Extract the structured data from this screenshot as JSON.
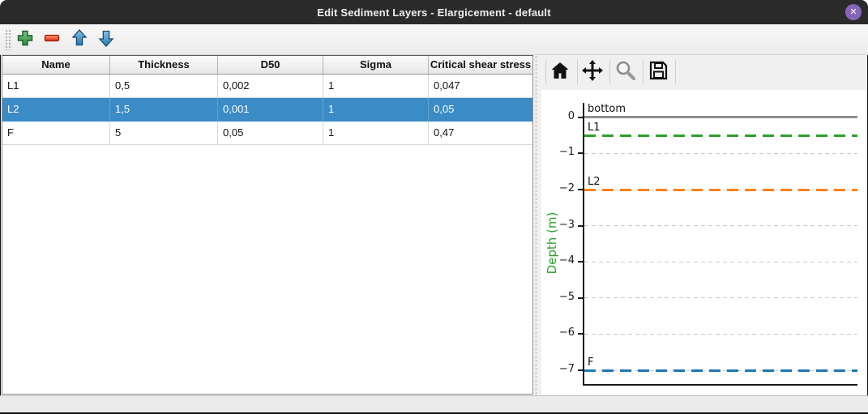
{
  "window": {
    "title": "Edit Sediment Layers - Elargicement - default",
    "close_glyph": "✕"
  },
  "colors": {
    "selection": "#3b8bc7",
    "close_button": "#8566b8",
    "titlebar": "#2b2b2b",
    "ylabel_green": "#2ca02c"
  },
  "toolbar": {
    "icons": [
      "add-plus-icon",
      "remove-minus-icon",
      "move-up-icon",
      "move-down-icon"
    ]
  },
  "table": {
    "columns": [
      "Name",
      "Thickness",
      "D50",
      "Sigma",
      "Critical shear stress"
    ],
    "rows": [
      {
        "cells": [
          "L1",
          "0,5",
          "0,002",
          "1",
          "0,047"
        ],
        "selected": false
      },
      {
        "cells": [
          "L2",
          "1,5",
          "0,001",
          "1",
          "0,05"
        ],
        "selected": true
      },
      {
        "cells": [
          "F",
          "5",
          "0,05",
          "1",
          "0,47"
        ],
        "selected": false
      }
    ]
  },
  "plot_toolbar": {
    "icons": [
      "home-icon",
      "pan-icon",
      "zoom-icon",
      "save-icon"
    ]
  },
  "chart_data": {
    "type": "line",
    "title": "",
    "xlabel": "",
    "ylabel": "Depth (m)",
    "ylabel_color": "#2ca02c",
    "ylim": [
      -7.38,
      0.4
    ],
    "yticks": [
      0,
      -1,
      -2,
      -3,
      -4,
      -5,
      -6,
      -7
    ],
    "ytick_labels": [
      "0",
      "−1",
      "−2",
      "−3",
      "−4",
      "−5",
      "−6",
      "−7"
    ],
    "grid": true,
    "legend_position": "none",
    "series": [
      {
        "name": "bottom",
        "depth": 0,
        "linestyle": "solid",
        "color": "#909090"
      },
      {
        "name": "L1",
        "depth": -0.5,
        "linestyle": "dashed",
        "color": "#2ca02c"
      },
      {
        "name": "L2",
        "depth": -2.0,
        "linestyle": "dashed",
        "color": "#ff7f0e"
      },
      {
        "name": "F",
        "depth": -7.0,
        "linestyle": "dashed",
        "color": "#1f77b4"
      }
    ]
  }
}
